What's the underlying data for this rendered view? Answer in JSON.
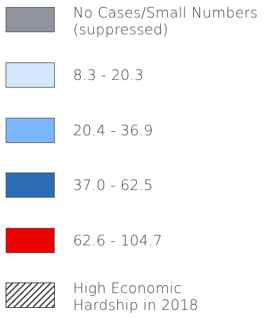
{
  "legend": {
    "items": [
      {
        "id": "suppressed",
        "lines": [
          "No Cases/Small Numbers",
          "(suppressed)"
        ],
        "color": "#8f939c",
        "pattern": "solid"
      },
      {
        "id": "range-1",
        "lines": [
          "8.3 - 20.3"
        ],
        "color": "#d4e7ff",
        "pattern": "solid"
      },
      {
        "id": "range-2",
        "lines": [
          "20.4 - 36.9"
        ],
        "color": "#7bb6fb",
        "pattern": "solid"
      },
      {
        "id": "range-3",
        "lines": [
          "37.0 - 62.5"
        ],
        "color": "#2d6db8",
        "pattern": "solid"
      },
      {
        "id": "range-4",
        "lines": [
          "62.6 - 104.7"
        ],
        "color": "#ee0000",
        "pattern": "solid"
      },
      {
        "id": "hardship",
        "lines": [
          "High Economic",
          "Hardship in 2018"
        ],
        "color": "#ffffff",
        "pattern": "diagonal-hatch",
        "pattern_color": "#222222"
      }
    ]
  }
}
